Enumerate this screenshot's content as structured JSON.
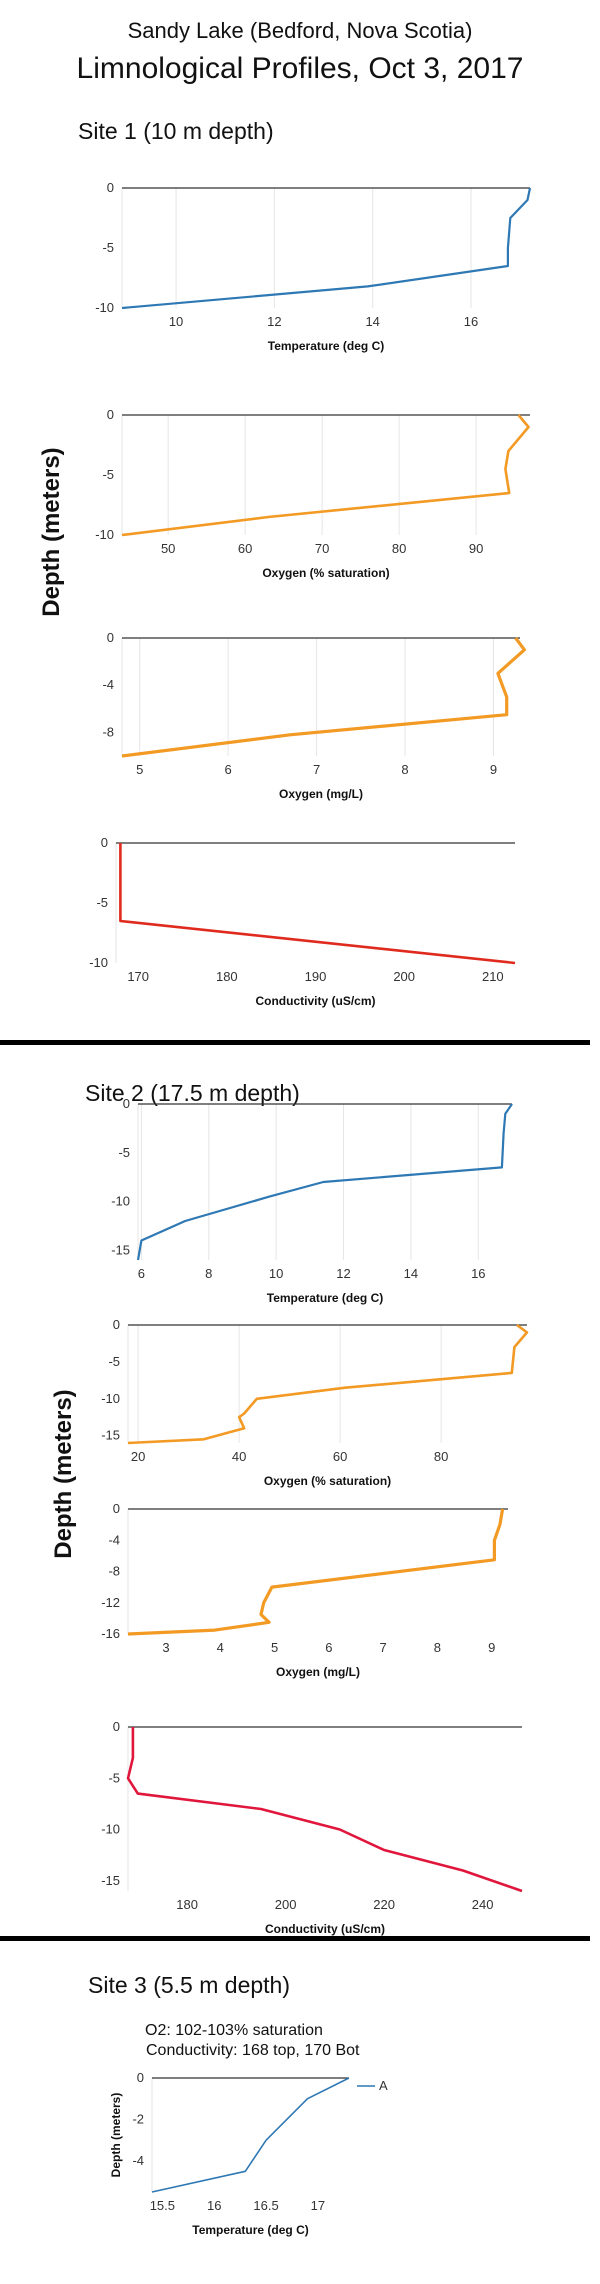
{
  "header": {
    "subtitle": "Sandy Lake (Bedford, Nova Scotia)",
    "title": "Limnological Profiles, Oct 3, 2017"
  },
  "sites": [
    {
      "title": "Site 1 (10 m depth)",
      "ylabel": "Depth (meters)"
    },
    {
      "title": "Site 2 (17.5 m depth)",
      "ylabel": "Depth (meters)"
    },
    {
      "title": "Site 3 (5.5 m depth)",
      "annotations": [
        "O2: 102-103% saturation",
        "Conductivity: 168 top, 170 Bot"
      ]
    }
  ],
  "colors": {
    "temperature": "#2e78b4",
    "oxygen": "#f29a24",
    "conductivity": "#e02a1e",
    "conductivity2": "#e0163c",
    "axis": "#333333",
    "grid": "#e6e6e6"
  },
  "chart_data": [
    {
      "id": "s1-temp",
      "type": "line",
      "xlabel": "Temperature (deg C)",
      "ylabel": "",
      "xlim": [
        8.9,
        17.2
      ],
      "ylim": [
        -10,
        0
      ],
      "xticks": [
        10,
        12,
        14,
        16
      ],
      "yticks": [
        0,
        -5,
        -10
      ],
      "x": [
        17.2,
        17.15,
        16.8,
        16.75,
        16.75,
        13.9,
        8.9
      ],
      "y": [
        0,
        -1,
        -2.5,
        -5,
        -6.5,
        -8.2,
        -10
      ],
      "color_key": "temperature"
    },
    {
      "id": "s1-oxsat",
      "type": "line",
      "xlabel": "Oxygen (% saturation)",
      "ylabel": "",
      "xlim": [
        44,
        97
      ],
      "ylim": [
        -10,
        0
      ],
      "xticks": [
        50,
        60,
        70,
        80,
        90
      ],
      "yticks": [
        0,
        -5,
        -10
      ],
      "x": [
        95.5,
        96.8,
        94.2,
        93.8,
        94.3,
        63,
        44
      ],
      "y": [
        0,
        -1,
        -3,
        -4.5,
        -6.5,
        -8.5,
        -10
      ],
      "color_key": "oxygen"
    },
    {
      "id": "s1-oxmg",
      "type": "line",
      "xlabel": "Oxygen (mg/L)",
      "ylabel": "",
      "xlim": [
        4.8,
        9.3
      ],
      "ylim": [
        -10,
        0
      ],
      "xticks": [
        5,
        6,
        7,
        8,
        9
      ],
      "yticks": [
        0,
        -4,
        -8
      ],
      "x": [
        9.25,
        9.35,
        9.05,
        9.15,
        9.15,
        6.7,
        4.8
      ],
      "y": [
        0,
        -1,
        -3,
        -5,
        -6.5,
        -8.2,
        -10
      ],
      "color_key": "oxygen"
    },
    {
      "id": "s1-cond",
      "type": "line",
      "xlabel": "Conductivity (uS/cm)",
      "ylabel": "",
      "xlim": [
        167.5,
        212.5
      ],
      "ylim": [
        -10,
        0
      ],
      "xticks": [
        170,
        180,
        190,
        200,
        210
      ],
      "yticks": [
        0,
        -5,
        -10
      ],
      "x": [
        168,
        168,
        168,
        212.5
      ],
      "y": [
        0,
        -3,
        -6.5,
        -10
      ],
      "color_key": "conductivity"
    },
    {
      "id": "s2-temp",
      "type": "line",
      "xlabel": "Temperature (deg C)",
      "ylabel": "",
      "xlim": [
        5.9,
        17.0
      ],
      "ylim": [
        -16,
        0
      ],
      "xticks": [
        6,
        8,
        10,
        12,
        14,
        16
      ],
      "yticks": [
        0,
        -5,
        -10,
        -15
      ],
      "x": [
        17,
        16.8,
        16.75,
        16.7,
        11.4,
        9.8,
        7.3,
        6.0,
        5.9
      ],
      "y": [
        0,
        -1,
        -3,
        -6.5,
        -8,
        -9.5,
        -12,
        -14,
        -16
      ],
      "color_key": "temperature"
    },
    {
      "id": "s2-oxsat",
      "type": "line",
      "xlabel": "Oxygen (% saturation)",
      "ylabel": "",
      "xlim": [
        18,
        97
      ],
      "ylim": [
        -16,
        0
      ],
      "xticks": [
        20,
        40,
        60,
        80
      ],
      "yticks": [
        0,
        -5,
        -10,
        -15
      ],
      "x": [
        95,
        97,
        94.5,
        94,
        61,
        43.5,
        41,
        40,
        41,
        33,
        18
      ],
      "y": [
        0,
        -1,
        -3,
        -6.5,
        -8.5,
        -10,
        -12,
        -12.5,
        -14,
        -15.5,
        -16
      ],
      "color_key": "oxygen"
    },
    {
      "id": "s2-oxmg",
      "type": "line",
      "xlabel": "Oxygen (mg/L)",
      "ylabel": "",
      "xlim": [
        2.3,
        9.3
      ],
      "ylim": [
        -16,
        0
      ],
      "xticks": [
        3,
        4,
        5,
        6,
        7,
        8,
        9
      ],
      "yticks": [
        0,
        -4,
        -8,
        -12,
        -16
      ],
      "x": [
        9.2,
        9.15,
        9.05,
        9.05,
        4.95,
        4.8,
        4.75,
        4.9,
        3.9,
        2.3
      ],
      "y": [
        0,
        -2,
        -4,
        -6.5,
        -10,
        -12,
        -13.5,
        -14.5,
        -15.5,
        -16
      ],
      "color_key": "oxygen"
    },
    {
      "id": "s2-cond",
      "type": "line",
      "xlabel": "Conductivity (uS/cm)",
      "ylabel": "",
      "xlim": [
        168,
        248
      ],
      "ylim": [
        -16,
        0
      ],
      "xticks": [
        180,
        200,
        220,
        240
      ],
      "yticks": [
        0,
        -5,
        -10,
        -15
      ],
      "x": [
        169,
        169,
        168,
        170,
        195,
        211,
        220,
        236,
        248
      ],
      "y": [
        0,
        -3,
        -5,
        -6.5,
        -8,
        -10,
        -12,
        -14,
        -16
      ],
      "color_key": "conductivity2"
    },
    {
      "id": "s3-temp",
      "type": "line",
      "xlabel": "Temperature (deg C)",
      "ylabel": "Depth (meters)",
      "xlim": [
        15.4,
        17.3
      ],
      "ylim": [
        -5.5,
        0
      ],
      "xticks": [
        15.5,
        16,
        16.5,
        17
      ],
      "yticks": [
        0,
        -2,
        -4
      ],
      "x": [
        17.3,
        16.9,
        16.5,
        16.3,
        15.4
      ],
      "y": [
        0,
        -1,
        -3,
        -4.5,
        -5.5
      ],
      "legend": "A",
      "color_key": "temperature"
    }
  ]
}
